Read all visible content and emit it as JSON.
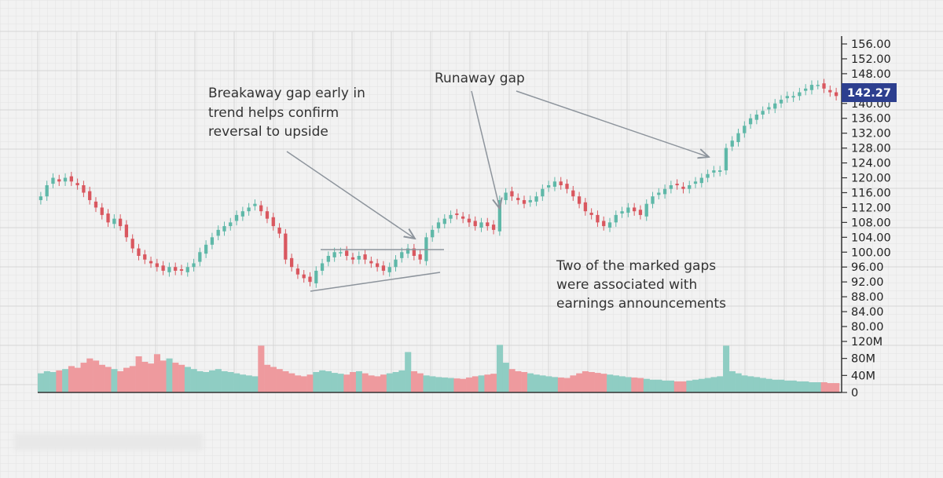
{
  "chart_data": {
    "type": "candlestick",
    "price_axis": {
      "ticks": [
        "156.00",
        "152.00",
        "148.00",
        "144.00",
        "140.00",
        "136.00",
        "132.00",
        "128.00",
        "124.00",
        "120.00",
        "116.00",
        "112.00",
        "108.00",
        "104.00",
        "100.00",
        "96.00",
        "92.00",
        "88.00",
        "84.00",
        "80.00"
      ],
      "range": [
        80,
        156
      ]
    },
    "volume_axis": {
      "ticks": [
        "120M",
        "80M",
        "40M",
        "0"
      ],
      "range": [
        0,
        120
      ]
    },
    "last_price": "142.27",
    "grid": true,
    "closes": [
      115,
      118,
      120,
      119,
      120,
      119,
      118,
      116,
      114,
      112,
      110,
      108,
      109,
      107,
      104,
      101,
      99,
      98,
      97,
      96,
      95,
      96,
      95,
      95,
      96,
      97,
      100,
      102,
      104,
      106,
      107,
      108,
      110,
      111,
      112,
      113,
      111,
      109,
      107,
      105,
      98,
      96,
      94,
      93,
      92,
      95,
      97,
      99,
      100,
      100,
      99,
      98,
      99,
      98,
      97,
      96,
      95,
      96,
      98,
      100,
      101,
      99,
      98,
      104,
      106,
      108,
      109,
      110,
      110,
      109,
      108,
      107,
      108,
      107,
      106,
      114,
      116,
      115,
      114,
      113,
      114,
      115,
      117,
      118,
      119,
      118,
      117,
      115,
      113,
      111,
      110,
      108,
      107,
      108,
      110,
      111,
      112,
      111,
      110,
      113,
      115,
      116,
      117,
      118,
      118,
      117,
      118,
      119,
      120,
      121,
      122,
      122,
      128,
      130,
      132,
      134,
      136,
      137,
      138,
      139,
      140,
      141,
      142,
      142,
      143,
      144,
      145,
      145,
      144,
      143,
      142
    ],
    "volume": [
      45,
      50,
      48,
      52,
      55,
      62,
      58,
      70,
      80,
      75,
      65,
      60,
      55,
      50,
      58,
      62,
      85,
      72,
      68,
      90,
      75,
      80,
      70,
      65,
      60,
      55,
      50,
      48,
      52,
      55,
      50,
      48,
      45,
      42,
      40,
      38,
      110,
      65,
      60,
      55,
      50,
      45,
      40,
      38,
      42,
      48,
      52,
      50,
      46,
      44,
      42,
      48,
      50,
      45,
      40,
      38,
      42,
      45,
      48,
      52,
      95,
      50,
      45,
      40,
      38,
      36,
      35,
      34,
      33,
      32,
      35,
      38,
      40,
      42,
      44,
      112,
      70,
      55,
      50,
      48,
      45,
      42,
      40,
      38,
      36,
      35,
      34,
      40,
      45,
      50,
      48,
      46,
      44,
      42,
      40,
      38,
      36,
      35,
      34,
      32,
      30,
      30,
      28,
      28,
      26,
      26,
      28,
      30,
      32,
      34,
      36,
      38,
      110,
      50,
      45,
      40,
      38,
      36,
      34,
      32,
      30,
      30,
      28,
      28,
      26,
      26,
      24,
      24,
      24,
      22,
      22
    ],
    "annotations": [
      {
        "text": "Breakaway gap early in"
      },
      {
        "text": "trend helps confirm"
      },
      {
        "text": "reversal to upside"
      },
      {
        "text": "Runaway gap"
      },
      {
        "text": "Two of the marked gaps"
      },
      {
        "text": "were associated with"
      },
      {
        "text": "earnings announcements"
      }
    ],
    "colors": {
      "up": "#5fb8a8",
      "down": "#d9575f",
      "vol_up": "#8fcdc3",
      "vol_down": "#ee9a9e",
      "tag": "#2d3f8f"
    }
  }
}
